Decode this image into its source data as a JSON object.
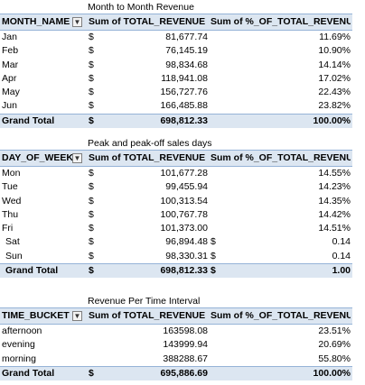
{
  "sections": [
    {
      "title": "Month to Month Revenue",
      "headers": [
        "MONTH_NAME",
        "Sum of TOTAL_REVENUE",
        "Sum of %_OF_TOTAL_REVENUE"
      ],
      "rows": [
        {
          "label": "Jan",
          "cur": "$",
          "value": "81,677.74",
          "pct": "11.69%"
        },
        {
          "label": "Feb",
          "cur": "$",
          "value": "76,145.19",
          "pct": "10.90%"
        },
        {
          "label": "Mar",
          "cur": "$",
          "value": "98,834.68",
          "pct": "14.14%"
        },
        {
          "label": "Apr",
          "cur": "$",
          "value": "118,941.08",
          "pct": "17.02%"
        },
        {
          "label": "May",
          "cur": "$",
          "value": "156,727.76",
          "pct": "22.43%"
        },
        {
          "label": "Jun",
          "cur": "$",
          "value": "166,485.88",
          "pct": "23.82%"
        }
      ],
      "total": {
        "label": "Grand Total",
        "cur": "$",
        "value": "698,812.33",
        "pct": "100.00%"
      }
    },
    {
      "title": "Peak and peak-off sales days",
      "headers": [
        "DAY_OF_WEEK",
        "Sum of TOTAL_REVENUE",
        "Sum of %_OF_TOTAL_REVENUE"
      ],
      "rows": [
        {
          "label": "Mon",
          "cur": "$",
          "value": "101,677.28",
          "pct": "14.55%"
        },
        {
          "label": "Tue",
          "cur": "$",
          "value": "99,455.94",
          "pct": "14.23%"
        },
        {
          "label": "Wed",
          "cur": "$",
          "value": "100,313.54",
          "pct": "14.35%"
        },
        {
          "label": "Thu",
          "cur": "$",
          "value": "100,767.78",
          "pct": "14.42%"
        },
        {
          "label": "Fri",
          "cur": "$",
          "value": "101,373.00",
          "pct": "14.51%"
        },
        {
          "label": "Sat",
          "cur": "$",
          "value": "96,894.48",
          "cur2": "$",
          "pct": "0.14"
        },
        {
          "label": "Sun",
          "cur": "$",
          "value": "98,330.31",
          "cur2": "$",
          "pct": "0.14"
        }
      ],
      "total": {
        "label": "Grand Total",
        "cur": "$",
        "value": "698,812.33",
        "cur2": "$",
        "pct": "1.00"
      }
    },
    {
      "title": "Revenue Per Time Interval",
      "headers": [
        "TIME_BUCKET",
        "Sum of TOTAL_REVENUE",
        "Sum of %_OF_TOTAL_REVENUE"
      ],
      "rows": [
        {
          "label": "afternoon",
          "value": "163598.08",
          "pct": "23.51%"
        },
        {
          "label": "evening",
          "value": "143999.94",
          "pct": "20.69%"
        },
        {
          "label": "morning",
          "value": "388288.67",
          "pct": "55.80%"
        }
      ],
      "total": {
        "label": "Grand Total",
        "cur": "$",
        "value": "695,886.69",
        "pct": "100.00%"
      }
    }
  ]
}
